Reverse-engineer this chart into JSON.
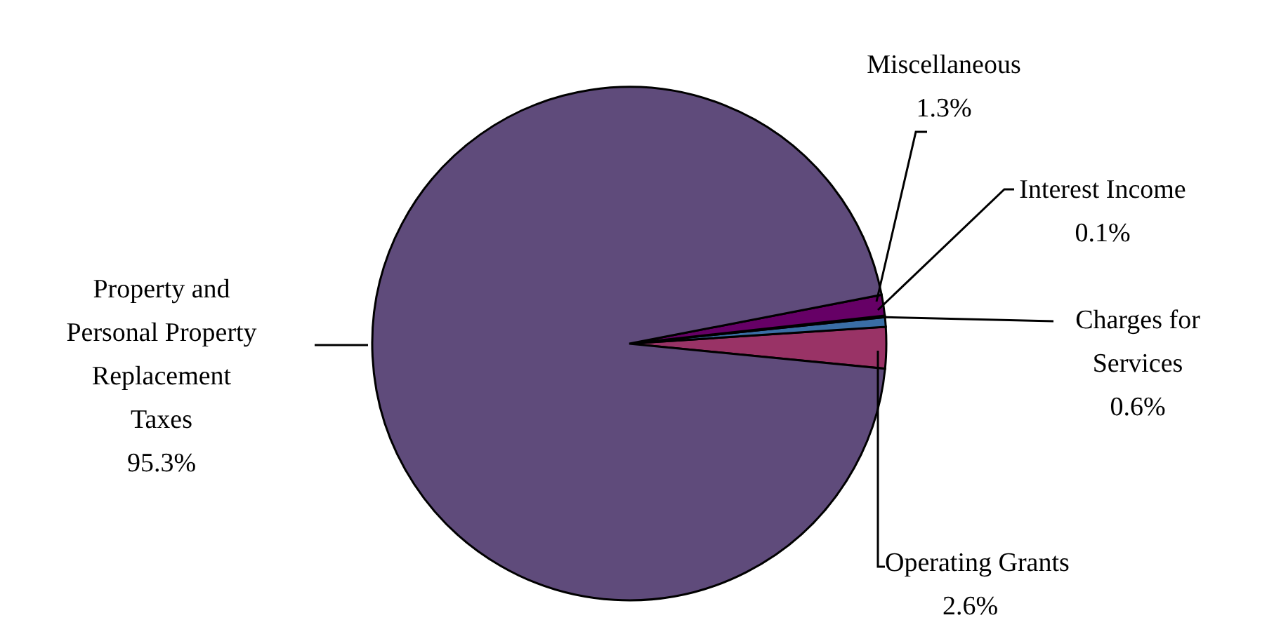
{
  "chart_data": {
    "type": "pie",
    "categories": [
      "Operating Grants",
      "Charges for Services",
      "Interest Income",
      "Miscellaneous",
      "Property and Personal Property Replacement Taxes"
    ],
    "values": [
      2.6,
      0.6,
      0.1,
      1.3,
      95.3
    ],
    "value_labels": [
      "2.6%",
      "0.6%",
      "0.1%",
      "1.3%",
      "95.3%"
    ],
    "colors": [
      "#993366",
      "#3a6ea5",
      "#1f3a5f",
      "#660066",
      "#5f4b7b"
    ]
  }
}
